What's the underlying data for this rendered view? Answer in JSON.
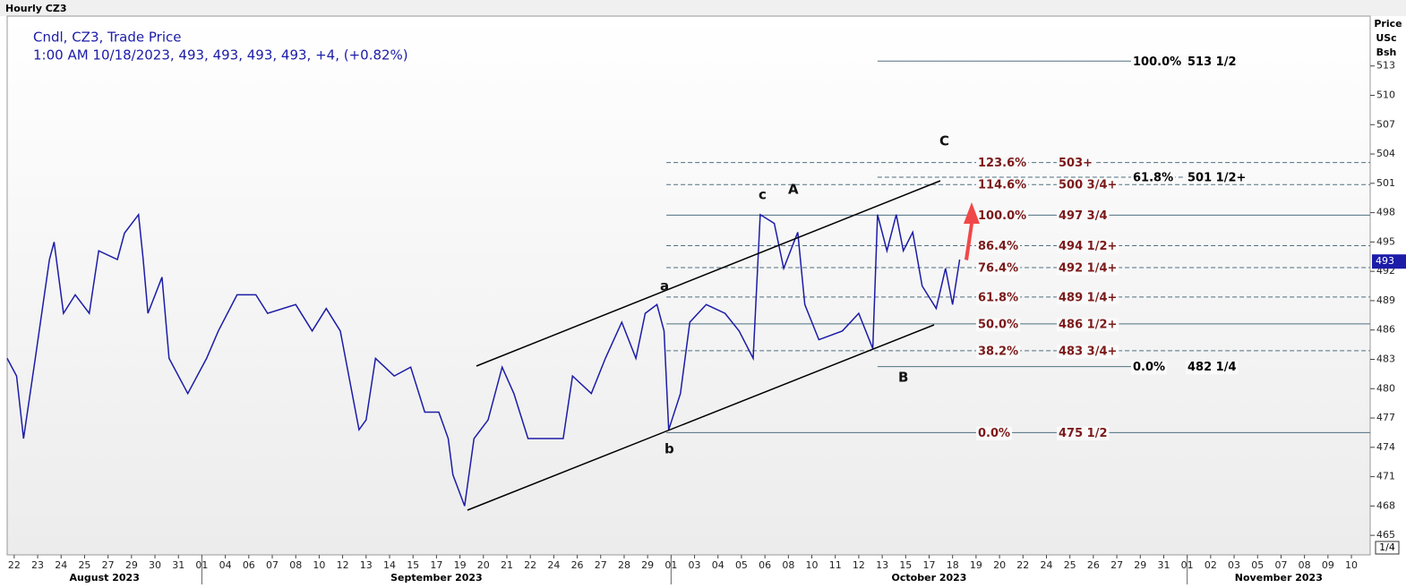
{
  "chart_data": {
    "type": "line",
    "window_title": "Hourly CZ3",
    "legend_lines": [
      "Cndl, CZ3, Trade Price",
      "1:00 AM 10/18/2023, 493, 493, 493, 493, +4, (+0.82%)"
    ],
    "y_axis_title": [
      "Price",
      "USc",
      "Bsh"
    ],
    "tick_size": "1/4",
    "last_price": 493,
    "color": "#1c1ca8",
    "xlim": [
      -0.3,
      57.8
    ],
    "ylim": [
      463,
      518.1
    ],
    "yticks": [
      465,
      468,
      471,
      474,
      477,
      480,
      483,
      486,
      489,
      492,
      495,
      498,
      501,
      504,
      507,
      510,
      513
    ],
    "xticks": [
      {
        "value": 0,
        "label": "22"
      },
      {
        "value": 1,
        "label": "23"
      },
      {
        "value": 2,
        "label": "24"
      },
      {
        "value": 3,
        "label": "25"
      },
      {
        "value": 4,
        "label": "27"
      },
      {
        "value": 5,
        "label": "29"
      },
      {
        "value": 6,
        "label": "30"
      },
      {
        "value": 7,
        "label": "31"
      },
      {
        "value": 8,
        "label": "01"
      },
      {
        "value": 9,
        "label": "04"
      },
      {
        "value": 10,
        "label": "06"
      },
      {
        "value": 11,
        "label": "07"
      },
      {
        "value": 12,
        "label": "08"
      },
      {
        "value": 13,
        "label": "10"
      },
      {
        "value": 14,
        "label": "12"
      },
      {
        "value": 15,
        "label": "13"
      },
      {
        "value": 16,
        "label": "14"
      },
      {
        "value": 17,
        "label": "15"
      },
      {
        "value": 18,
        "label": "17"
      },
      {
        "value": 19,
        "label": "19"
      },
      {
        "value": 20,
        "label": "20"
      },
      {
        "value": 21,
        "label": "21"
      },
      {
        "value": 22,
        "label": "22"
      },
      {
        "value": 23,
        "label": "24"
      },
      {
        "value": 24,
        "label": "26"
      },
      {
        "value": 25,
        "label": "27"
      },
      {
        "value": 26,
        "label": "28"
      },
      {
        "value": 27,
        "label": "29"
      },
      {
        "value": 28,
        "label": "01"
      },
      {
        "value": 29,
        "label": "03"
      },
      {
        "value": 30,
        "label": "04"
      },
      {
        "value": 31,
        "label": "05"
      },
      {
        "value": 32,
        "label": "06"
      },
      {
        "value": 33,
        "label": "08"
      },
      {
        "value": 34,
        "label": "10"
      },
      {
        "value": 35,
        "label": "11"
      },
      {
        "value": 36,
        "label": "12"
      },
      {
        "value": 37,
        "label": "13"
      },
      {
        "value": 38,
        "label": "15"
      },
      {
        "value": 39,
        "label": "17"
      },
      {
        "value": 40,
        "label": "18"
      },
      {
        "value": 41,
        "label": "19"
      },
      {
        "value": 42,
        "label": "20"
      },
      {
        "value": 43,
        "label": "22"
      },
      {
        "value": 44,
        "label": "24"
      },
      {
        "value": 45,
        "label": "25"
      },
      {
        "value": 46,
        "label": "26"
      },
      {
        "value": 47,
        "label": "27"
      },
      {
        "value": 48,
        "label": "29"
      },
      {
        "value": 49,
        "label": "31"
      },
      {
        "value": 50,
        "label": "01"
      },
      {
        "value": 51,
        "label": "02"
      },
      {
        "value": 52,
        "label": "03"
      },
      {
        "value": 53,
        "label": "05"
      },
      {
        "value": 54,
        "label": "07"
      },
      {
        "value": 55,
        "label": "08"
      },
      {
        "value": 56,
        "label": "09"
      },
      {
        "value": 57,
        "label": "10"
      }
    ],
    "months": [
      {
        "label": "August 2023",
        "range": [
          -0.3,
          8
        ]
      },
      {
        "label": "September 2023",
        "range": [
          8,
          28
        ]
      },
      {
        "label": "October 2023",
        "range": [
          28,
          50
        ]
      },
      {
        "label": "November 2023",
        "range": [
          50,
          57.8
        ]
      }
    ],
    "x": [
      -0.3,
      0.1,
      0.4,
      0.9,
      1.5,
      1.7,
      2.1,
      2.6,
      3.2,
      3.6,
      4.4,
      4.7,
      5.3,
      5.5,
      5.7,
      6.3,
      6.6,
      7.4,
      8.2,
      8.7,
      9.5,
      10.3,
      10.8,
      12.0,
      12.7,
      13.3,
      13.9,
      14.7,
      15.0,
      15.4,
      16.2,
      16.9,
      17.5,
      18.1,
      18.5,
      18.7,
      19.2,
      19.6,
      20.2,
      20.8,
      21.3,
      21.9,
      22.9,
      23.4,
      23.8,
      24.6,
      25.2,
      25.9,
      26.5,
      26.9,
      27.4,
      27.7,
      27.9,
      28.4,
      28.8,
      29.5,
      30.3,
      30.9,
      31.5,
      31.8,
      32.4,
      32.8,
      33.4,
      33.7,
      34.3,
      35.3,
      36.0,
      36.6,
      36.8,
      37.2,
      37.6,
      37.9,
      38.3,
      38.7,
      39.3,
      39.7,
      40.0,
      40.3
    ],
    "values": [
      483.1,
      481.3,
      474.9,
      483.1,
      493.2,
      495.0,
      487.7,
      489.6,
      487.7,
      494.1,
      493.2,
      495.9,
      497.8,
      493.2,
      487.7,
      491.4,
      483.1,
      479.5,
      483.1,
      485.9,
      489.6,
      489.6,
      487.7,
      488.6,
      485.9,
      488.2,
      485.9,
      475.8,
      476.8,
      483.1,
      481.3,
      482.2,
      477.6,
      477.6,
      474.9,
      471.2,
      468.0,
      474.9,
      476.8,
      482.2,
      479.5,
      474.9,
      474.9,
      474.9,
      481.3,
      479.5,
      483.1,
      486.8,
      483.1,
      487.7,
      488.6,
      485.9,
      475.8,
      479.5,
      486.8,
      488.6,
      487.7,
      485.9,
      483.1,
      497.8,
      496.9,
      492.3,
      496.0,
      488.6,
      485.0,
      485.9,
      487.7,
      484.1,
      497.8,
      494.1,
      497.8,
      494.1,
      496.0,
      490.5,
      488.2,
      492.3,
      488.6,
      493.2
    ],
    "levels": [
      {
        "percent": "100.0%",
        "price": "513 1/2",
        "value": 513.5,
        "x": [
          36.8,
          47.7
        ],
        "dashed": false,
        "color": "#000000"
      },
      {
        "percent": "123.6%",
        "price": "503+",
        "value": 503.125,
        "x": [
          27.8,
          57.8
        ],
        "dashed": true,
        "color": "#7b1a1a"
      },
      {
        "percent": "61.8%",
        "price": "501 1/2+",
        "value": 501.625,
        "x": [
          36.8,
          52.6
        ],
        "dashed": true,
        "color": "#000000"
      },
      {
        "percent": "114.6%",
        "price": "500 3/4+",
        "value": 500.875,
        "x": [
          27.8,
          57.8
        ],
        "dashed": true,
        "color": "#7b1a1a"
      },
      {
        "percent": "100.0%",
        "price": "497 3/4",
        "value": 497.75,
        "x": [
          27.8,
          57.8
        ],
        "dashed": false,
        "color": "#7b1a1a"
      },
      {
        "percent": "86.4%",
        "price": "494 1/2+",
        "value": 494.625,
        "x": [
          27.8,
          57.8
        ],
        "dashed": true,
        "color": "#7b1a1a"
      },
      {
        "percent": "76.4%",
        "price": "492 1/4+",
        "value": 492.375,
        "x": [
          27.8,
          57.8
        ],
        "dashed": true,
        "color": "#7b1a1a"
      },
      {
        "percent": "61.8%",
        "price": "489 1/4+",
        "value": 489.375,
        "x": [
          27.8,
          57.8
        ],
        "dashed": true,
        "color": "#7b1a1a"
      },
      {
        "percent": "50.0%",
        "price": "486 1/2+",
        "value": 486.625,
        "x": [
          27.8,
          57.8
        ],
        "dashed": false,
        "color": "#7b1a1a"
      },
      {
        "percent": "38.2%",
        "price": "483 3/4+",
        "value": 483.875,
        "x": [
          27.8,
          57.8
        ],
        "dashed": true,
        "color": "#7b1a1a"
      },
      {
        "percent": "0.0%",
        "price": "482 1/4",
        "value": 482.25,
        "x": [
          36.8,
          49.0
        ],
        "dashed": false,
        "color": "#000000"
      },
      {
        "percent": "0.0%",
        "price": "475 1/2",
        "value": 475.5,
        "x": [
          27.8,
          57.8
        ],
        "dashed": false,
        "color": "#7b1a1a"
      }
    ],
    "wave_labels": [
      "a",
      "b",
      "c",
      "A",
      "B",
      "C"
    ]
  }
}
